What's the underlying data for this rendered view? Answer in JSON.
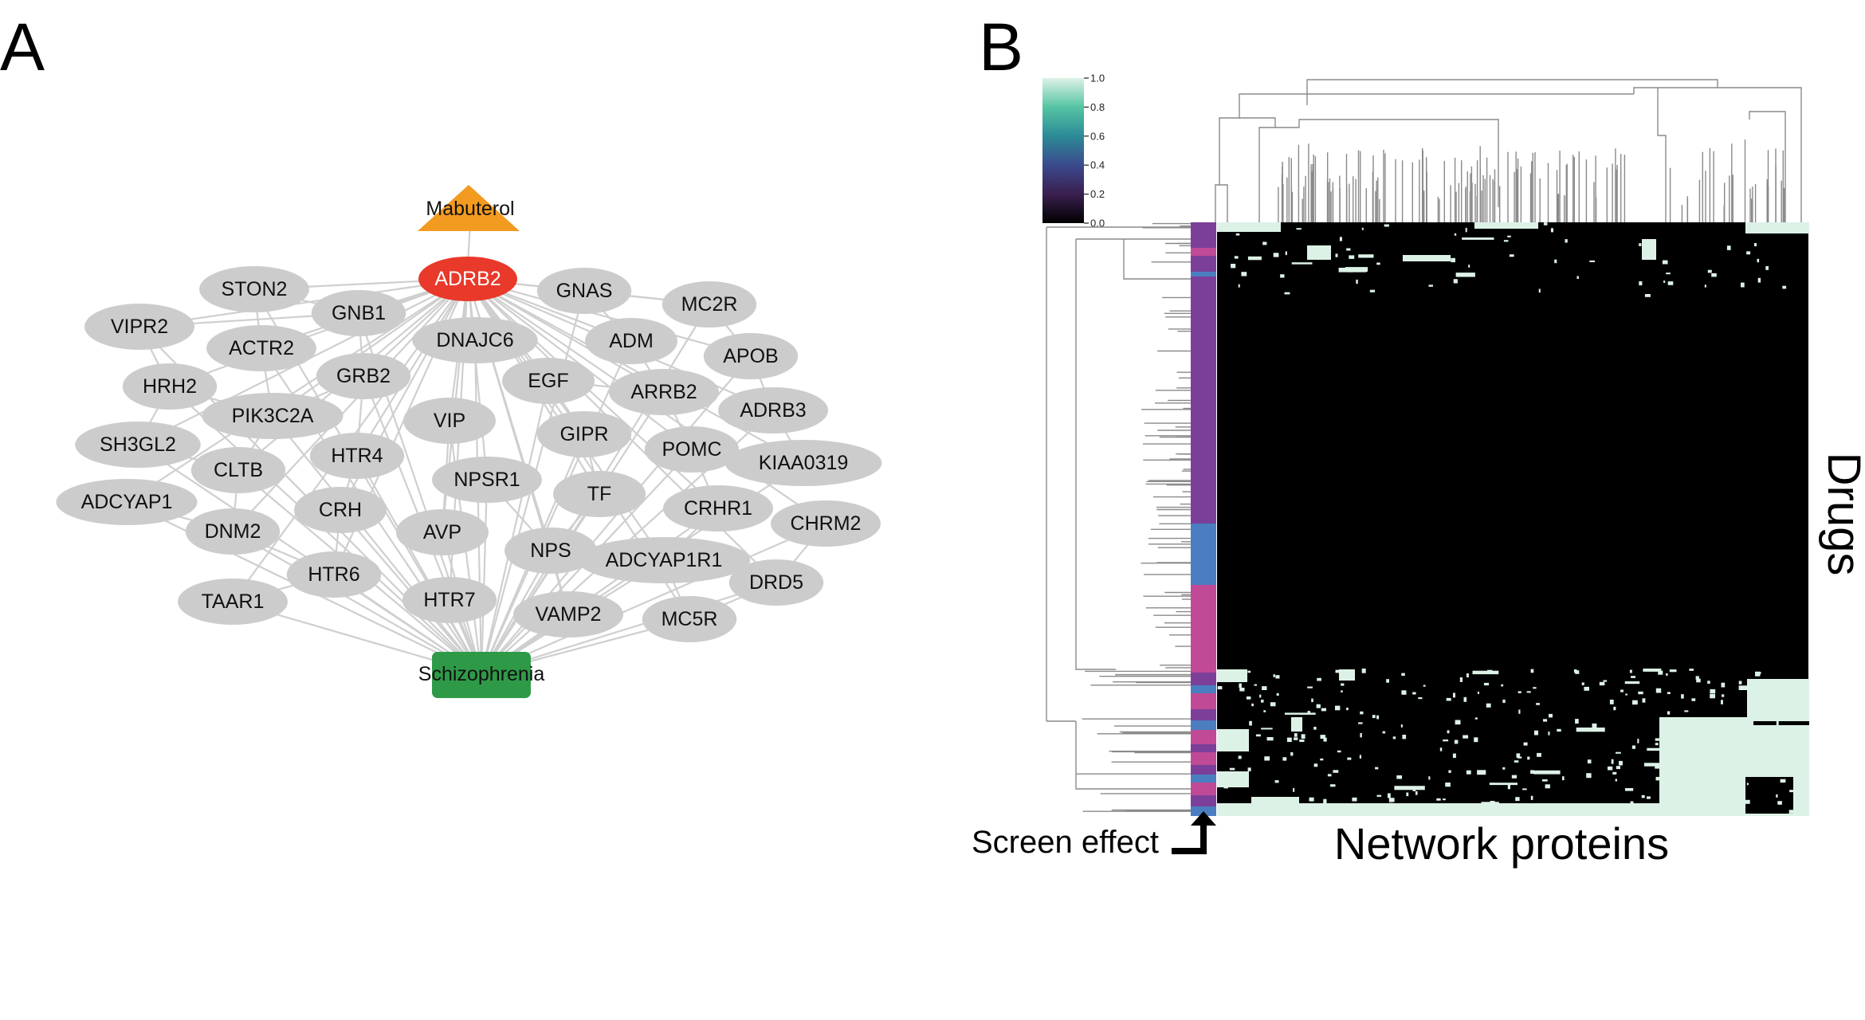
{
  "panel_a": {
    "letter": "A",
    "drug": "Mabuterol",
    "target": "ADRB2",
    "disease": "Schizophrenia",
    "proteins": [
      "STON2",
      "GNB1",
      "GNAS",
      "MC2R",
      "VIPR2",
      "ACTR2",
      "DNAJC6",
      "ADM",
      "APOB",
      "HRH2",
      "GRB2",
      "EGF",
      "ARRB2",
      "ADRB3",
      "PIK3C2A",
      "VIP",
      "GIPR",
      "POMC",
      "SH3GL2",
      "CLTB",
      "HTR4",
      "NPSR1",
      "TF",
      "KIAA0319",
      "ADCYAP1",
      "CRH",
      "CRHR1",
      "CHRM2",
      "DNM2",
      "AVP",
      "NPS",
      "ADCYAP1R1",
      "HTR6",
      "DRD5",
      "TAAR1",
      "HTR7",
      "VAMP2",
      "MC5R"
    ],
    "colors": {
      "drug": "#F39A21",
      "target": "#E8392A",
      "disease": "#2E9A48",
      "protein": "#CCCCCC",
      "edge": "#CFCFCF"
    }
  },
  "panel_b": {
    "letter": "B",
    "colorbar_ticks": [
      "1.0",
      "0.8",
      "0.6",
      "0.4",
      "0.2",
      "0.0"
    ],
    "row_axis_label": "Drugs",
    "column_axis_label": "Network proteins",
    "screen_effect_label": "Screen effect",
    "colors": {
      "low": "#000000",
      "high": "#DDF2E6",
      "purple": "#7B3F9A",
      "blue": "#4A7EC0",
      "pink": "#C04A96"
    }
  }
}
